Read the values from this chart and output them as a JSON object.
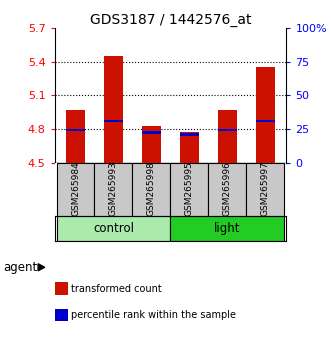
{
  "title": "GDS3187 / 1442576_at",
  "samples": [
    "GSM265984",
    "GSM265993",
    "GSM265998",
    "GSM265995",
    "GSM265996",
    "GSM265997"
  ],
  "red_bar_top": [
    4.97,
    5.45,
    4.83,
    4.77,
    4.97,
    5.35
  ],
  "blue_marker": [
    4.79,
    4.87,
    4.77,
    4.75,
    4.79,
    4.87
  ],
  "bar_bottom": 4.5,
  "ylim": [
    4.5,
    5.7
  ],
  "yticks_left": [
    4.5,
    4.8,
    5.1,
    5.4,
    5.7
  ],
  "yticks_right": [
    0,
    25,
    50,
    75,
    100
  ],
  "yticks_right_labels": [
    "0",
    "25",
    "50",
    "75",
    "100%"
  ],
  "grid_lines": [
    4.8,
    5.1,
    5.4
  ],
  "groups": [
    {
      "label": "control",
      "indices": [
        0,
        1,
        2
      ],
      "color": "#AAEAAA"
    },
    {
      "label": "light",
      "indices": [
        3,
        4,
        5
      ],
      "color": "#22CC22"
    }
  ],
  "red_color": "#CC1100",
  "blue_color": "#0000CC",
  "bar_width": 0.5,
  "sample_bg_color": "#C8C8C8",
  "agent_label": "agent",
  "legend_items": [
    {
      "color": "#CC1100",
      "label": "transformed count"
    },
    {
      "color": "#0000CC",
      "label": "percentile rank within the sample"
    }
  ]
}
